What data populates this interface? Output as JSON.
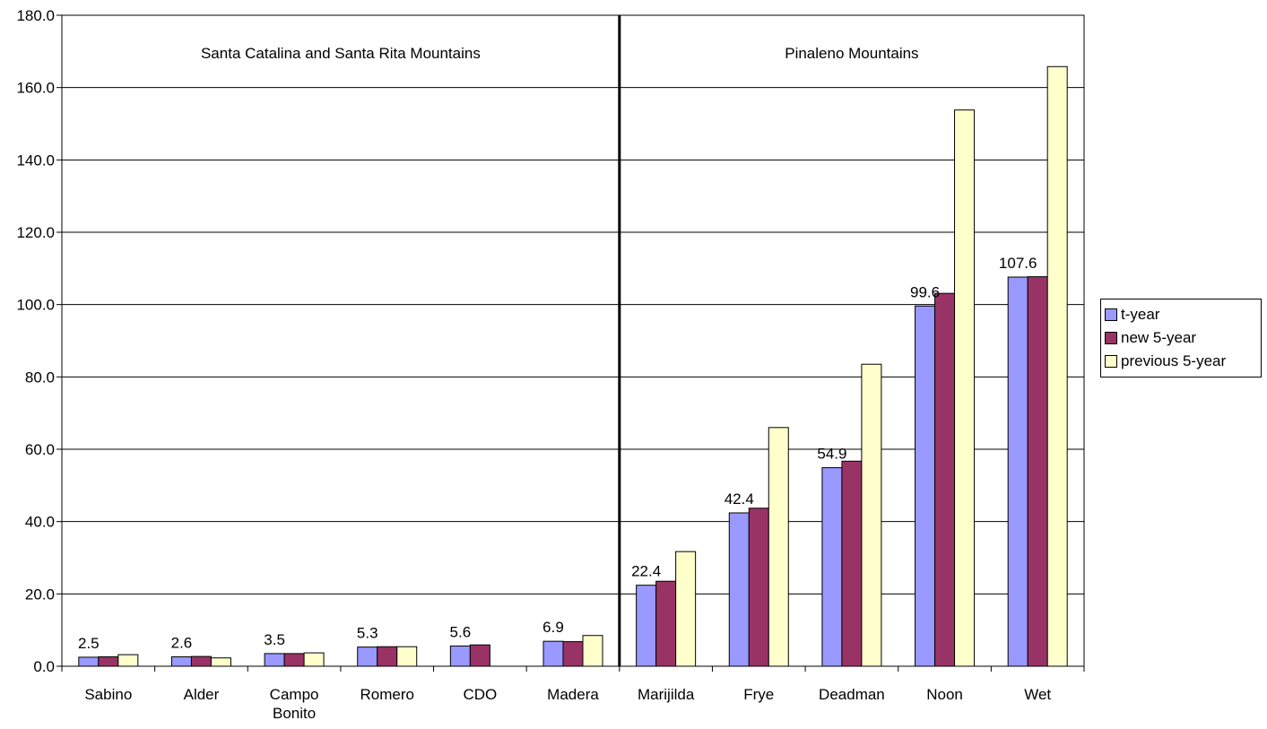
{
  "chart_data": {
    "type": "bar",
    "categories": [
      [
        "Sabino"
      ],
      [
        "Alder"
      ],
      [
        "Campo",
        "Bonito"
      ],
      [
        "Romero"
      ],
      [
        "CDO"
      ],
      [
        "Madera"
      ],
      [
        "Marijilda"
      ],
      [
        "Frye"
      ],
      [
        "Deadman"
      ],
      [
        "Noon"
      ],
      [
        "Wet"
      ]
    ],
    "series": [
      {
        "name": "t-year",
        "color": "#9999ff",
        "values": [
          2.5,
          2.6,
          3.5,
          5.3,
          5.6,
          6.9,
          22.4,
          42.4,
          54.9,
          99.6,
          107.6
        ]
      },
      {
        "name": "new 5-year",
        "color": "#993366",
        "values": [
          2.6,
          2.7,
          3.5,
          5.4,
          5.9,
          6.8,
          23.5,
          43.7,
          56.7,
          103.1,
          107.7
        ]
      },
      {
        "name": "previous 5-year",
        "color": "#ffffcc",
        "values": [
          3.2,
          2.3,
          3.7,
          5.4,
          null,
          8.5,
          31.7,
          66.0,
          83.5,
          153.8,
          165.8
        ]
      }
    ],
    "data_labels": [
      "2.5",
      "2.6",
      "3.5",
      "5.3",
      "5.6",
      "6.9",
      "22.4",
      "42.4",
      "54.9",
      "99.6",
      "107.6"
    ],
    "ylim": [
      0,
      180
    ],
    "ytick_step": 20,
    "ytick_labels": [
      "0.0",
      "20.0",
      "40.0",
      "60.0",
      "80.0",
      "100.0",
      "120.0",
      "140.0",
      "160.0",
      "180.0"
    ],
    "grid": true,
    "divider_after_category": 6,
    "region_labels": [
      "Santa Catalina and Santa Rita Mountains",
      "Pinaleno Mountains"
    ],
    "legend_position": "right"
  }
}
